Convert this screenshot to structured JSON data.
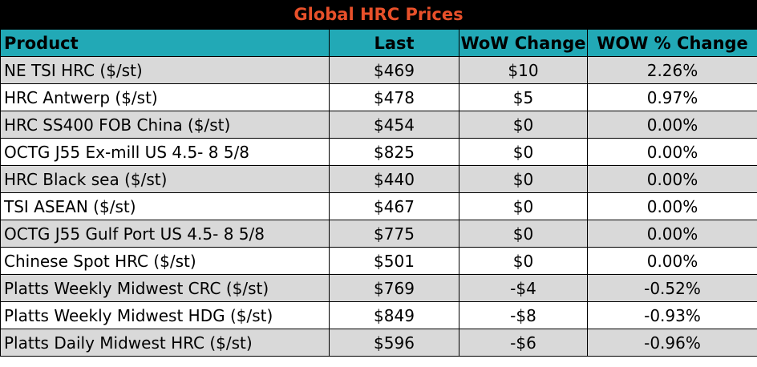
{
  "title": "Global HRC Prices",
  "colors": {
    "title_bg": "#000000",
    "title_text": "#e8502a",
    "header_bg": "#22a9b6",
    "row_alt_bg": "#d9d9d9"
  },
  "headers": {
    "product": "Product",
    "last": "Last",
    "wow_change": "WoW Change",
    "wow_pct_change": "WOW % Change"
  },
  "rows": [
    {
      "product": "NE TSI HRC ($/st)",
      "last": "$469",
      "wow": "$10",
      "pct": "2.26%"
    },
    {
      "product": "HRC Antwerp ($/st)",
      "last": "$478",
      "wow": "$5",
      "pct": "0.97%"
    },
    {
      "product": "HRC SS400 FOB China ($/st)",
      "last": "$454",
      "wow": "$0",
      "pct": "0.00%"
    },
    {
      "product": "OCTG J55 Ex-mill US 4.5- 8 5/8",
      "last": "$825",
      "wow": "$0",
      "pct": "0.00%"
    },
    {
      "product": "HRC Black sea ($/st)",
      "last": "$440",
      "wow": "$0",
      "pct": "0.00%"
    },
    {
      "product": "TSI ASEAN ($/st)",
      "last": "$467",
      "wow": "$0",
      "pct": "0.00%"
    },
    {
      "product": "OCTG J55 Gulf Port US 4.5- 8 5/8",
      "last": "$775",
      "wow": "$0",
      "pct": "0.00%"
    },
    {
      "product": "Chinese Spot HRC ($/st)",
      "last": "$501",
      "wow": "$0",
      "pct": "0.00%"
    },
    {
      "product": "Platts Weekly Midwest CRC ($/st)",
      "last": "$769",
      "wow": "-$4",
      "pct": "-0.52%"
    },
    {
      "product": "Platts Weekly Midwest HDG ($/st)",
      "last": "$849",
      "wow": "-$8",
      "pct": "-0.93%"
    },
    {
      "product": "Platts Daily Midwest HRC ($/st)",
      "last": "$596",
      "wow": "-$6",
      "pct": "-0.96%"
    }
  ]
}
